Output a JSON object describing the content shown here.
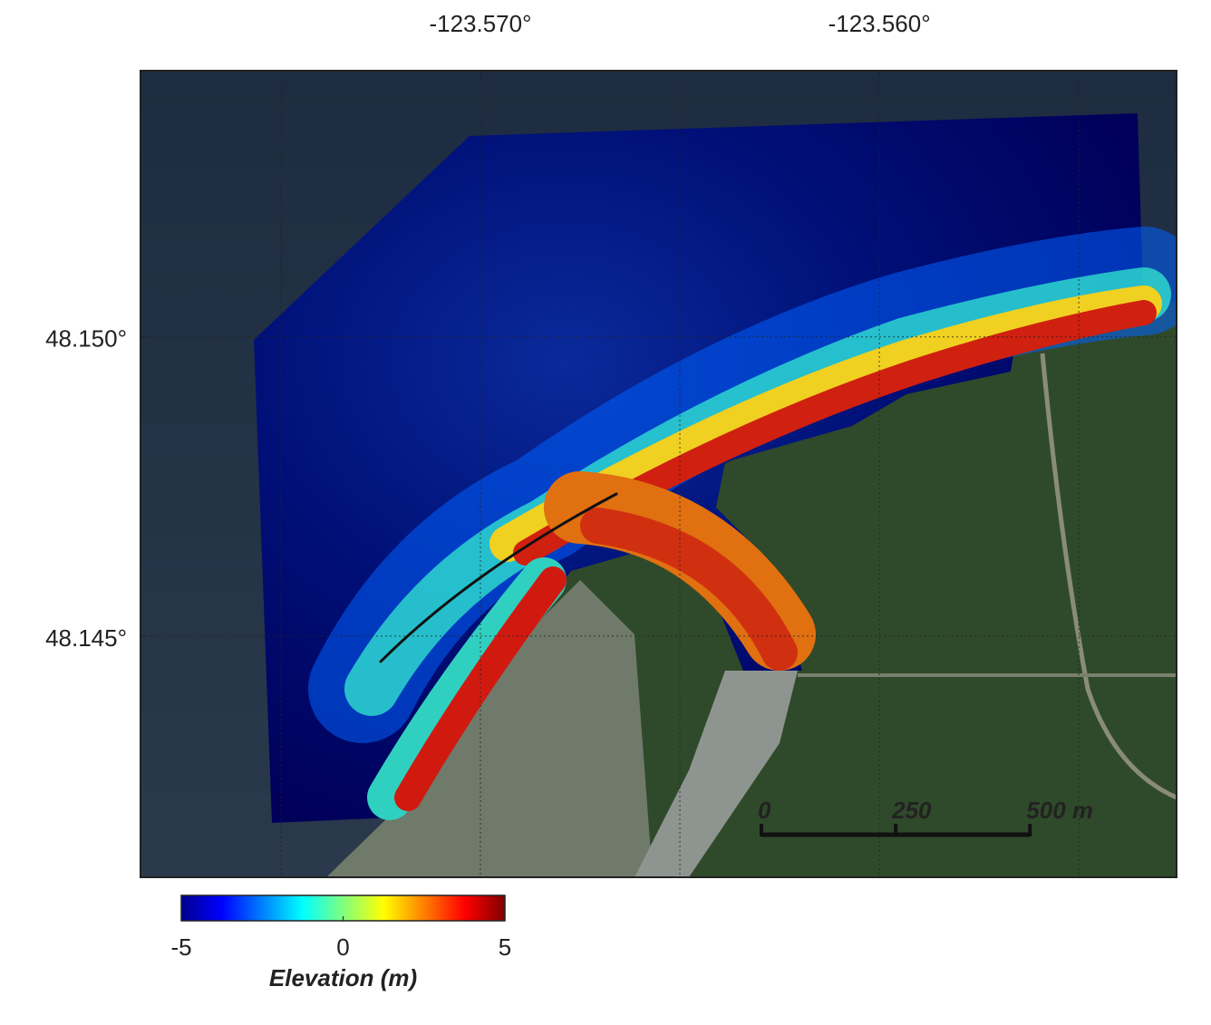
{
  "map": {
    "xlim": [
      -123.57852,
      -123.55255
    ],
    "ylim": [
      48.14097,
      48.15445
    ],
    "x_ticks": [
      {
        "value": -123.57,
        "label": "-123.570°"
      },
      {
        "value": -123.56,
        "label": "-123.560°"
      }
    ],
    "y_ticks": [
      {
        "value": 48.15,
        "label": "48.150°"
      },
      {
        "value": 48.145,
        "label": "48.145°"
      }
    ],
    "x_grid": [
      -123.575,
      -123.57,
      -123.565,
      -123.56,
      -123.555
    ],
    "y_grid": [
      48.15,
      48.145
    ],
    "colorbar": {
      "label": "Elevation (m)",
      "lim": [
        -5,
        5
      ],
      "ticks": [
        -5,
        0,
        5
      ],
      "colormap": "jet"
    },
    "scale_bar": {
      "lim": [
        0,
        500
      ],
      "ticks": [
        0,
        250,
        {
          "value": 500,
          "label": "500 m"
        }
      ]
    }
  }
}
